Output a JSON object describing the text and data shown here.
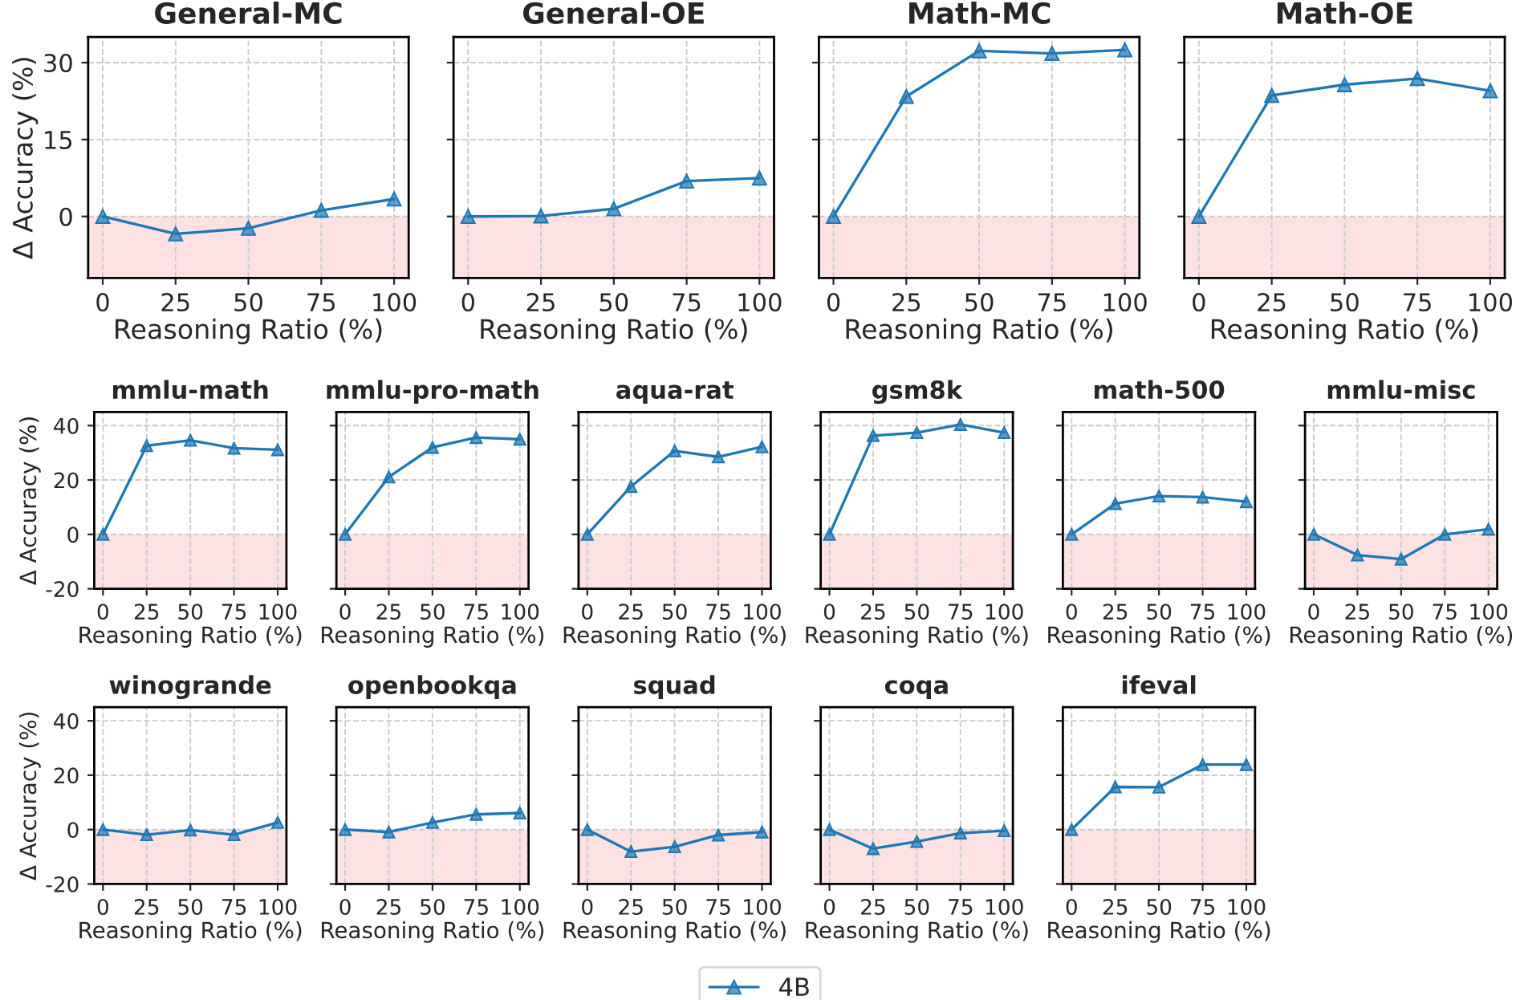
{
  "chart_data": [
    {
      "type": "line",
      "title": "General-MC",
      "xlabel": "Reasoning Ratio (%)",
      "ylabel": "Δ Accuracy (%)",
      "x": [
        0,
        25,
        50,
        75,
        100
      ],
      "xlim": [
        -5,
        105
      ],
      "xticks": [
        0,
        25,
        50,
        75,
        100
      ],
      "ylim": [
        -12,
        35
      ],
      "yticks": [
        0,
        15,
        30
      ],
      "grid": true,
      "marker": "triangle",
      "line_style": "solid",
      "legend": "bottom",
      "series": [
        {
          "name": "4B",
          "color": "#1f77b4",
          "values": [
            0,
            -3.4,
            -2.3,
            1.2,
            3.4
          ]
        }
      ],
      "bands": [
        {
          "axis": "y",
          "from": -12,
          "to": 0,
          "color": "#fde2e4"
        }
      ]
    },
    {
      "type": "line",
      "title": "General-OE",
      "xlabel": "Reasoning Ratio (%)",
      "x": [
        0,
        25,
        50,
        75,
        100
      ],
      "xlim": [
        -5,
        105
      ],
      "xticks": [
        0,
        25,
        50,
        75,
        100
      ],
      "ylim": [
        -12,
        35
      ],
      "yticks": [
        0,
        15,
        30
      ],
      "grid": true,
      "marker": "triangle",
      "line_style": "solid",
      "tick_labels": "x",
      "series": [
        {
          "color": "#1f77b4",
          "values": [
            0,
            0.1,
            1.5,
            6.9,
            7.5
          ]
        }
      ],
      "bands": [
        {
          "axis": "y",
          "from": -12,
          "to": 0,
          "color": "#fde2e4"
        }
      ]
    },
    {
      "type": "line",
      "title": "Math-MC",
      "xlabel": "Reasoning Ratio (%)",
      "x": [
        0,
        25,
        50,
        75,
        100
      ],
      "xlim": [
        -5,
        105
      ],
      "xticks": [
        0,
        25,
        50,
        75,
        100
      ],
      "ylim": [
        -12,
        35
      ],
      "yticks": [
        0,
        15,
        30
      ],
      "grid": true,
      "marker": "triangle",
      "line_style": "solid",
      "tick_labels": "x",
      "series": [
        {
          "color": "#1f77b4",
          "values": [
            0,
            23.4,
            32.3,
            31.8,
            32.5
          ]
        }
      ],
      "bands": [
        {
          "axis": "y",
          "from": -12,
          "to": 0,
          "color": "#fde2e4"
        }
      ]
    },
    {
      "type": "line",
      "title": "Math-OE",
      "xlabel": "Reasoning Ratio (%)",
      "x": [
        0,
        25,
        50,
        75,
        100
      ],
      "xlim": [
        -5,
        105
      ],
      "xticks": [
        0,
        25,
        50,
        75,
        100
      ],
      "ylim": [
        -12,
        35
      ],
      "yticks": [
        0,
        15,
        30
      ],
      "grid": true,
      "marker": "triangle",
      "line_style": "solid",
      "tick_labels": "x",
      "series": [
        {
          "color": "#1f77b4",
          "values": [
            0,
            23.6,
            25.7,
            26.9,
            24.5
          ]
        }
      ],
      "bands": [
        {
          "axis": "y",
          "from": -12,
          "to": 0,
          "color": "#fde2e4"
        }
      ]
    },
    {
      "type": "line",
      "title": "mmlu-math",
      "xlabel": "Reasoning Ratio (%)",
      "ylabel": "Δ Accuracy (%)",
      "x": [
        0,
        25,
        50,
        75,
        100
      ],
      "xlim": [
        -5,
        105
      ],
      "xticks": [
        0,
        25,
        50,
        75,
        100
      ],
      "ylim": [
        -20,
        45
      ],
      "yticks": [
        -20,
        0,
        20,
        40
      ],
      "grid": true,
      "marker": "triangle",
      "line_style": "solid",
      "series": [
        {
          "color": "#1f77b4",
          "values": [
            0,
            32.6,
            34.6,
            31.7,
            31.1
          ]
        }
      ],
      "bands": [
        {
          "axis": "y",
          "from": -20,
          "to": 0,
          "color": "#fde2e4"
        }
      ]
    },
    {
      "type": "line",
      "title": "mmlu-pro-math",
      "xlabel": "Reasoning Ratio (%)",
      "x": [
        0,
        25,
        50,
        75,
        100
      ],
      "xlim": [
        -5,
        105
      ],
      "xticks": [
        0,
        25,
        50,
        75,
        100
      ],
      "ylim": [
        -20,
        45
      ],
      "yticks": [
        -20,
        0,
        20,
        40
      ],
      "grid": true,
      "marker": "triangle",
      "line_style": "solid",
      "tick_labels": "x",
      "series": [
        {
          "color": "#1f77b4",
          "values": [
            0,
            21.1,
            32.0,
            35.6,
            35.0
          ]
        }
      ],
      "bands": [
        {
          "axis": "y",
          "from": -20,
          "to": 0,
          "color": "#fde2e4"
        }
      ]
    },
    {
      "type": "line",
      "title": "aqua-rat",
      "xlabel": "Reasoning Ratio (%)",
      "x": [
        0,
        25,
        50,
        75,
        100
      ],
      "xlim": [
        -5,
        105
      ],
      "xticks": [
        0,
        25,
        50,
        75,
        100
      ],
      "ylim": [
        -20,
        45
      ],
      "yticks": [
        -20,
        0,
        20,
        40
      ],
      "grid": true,
      "marker": "triangle",
      "line_style": "solid",
      "tick_labels": "x",
      "series": [
        {
          "color": "#1f77b4",
          "values": [
            0,
            17.6,
            30.7,
            28.5,
            32.2
          ]
        }
      ],
      "bands": [
        {
          "axis": "y",
          "from": -20,
          "to": 0,
          "color": "#fde2e4"
        }
      ]
    },
    {
      "type": "line",
      "title": "gsm8k",
      "xlabel": "Reasoning Ratio (%)",
      "x": [
        0,
        25,
        50,
        75,
        100
      ],
      "xlim": [
        -5,
        105
      ],
      "xticks": [
        0,
        25,
        50,
        75,
        100
      ],
      "ylim": [
        -20,
        45
      ],
      "yticks": [
        -20,
        0,
        20,
        40
      ],
      "grid": true,
      "marker": "triangle",
      "line_style": "solid",
      "tick_labels": "x",
      "series": [
        {
          "color": "#1f77b4",
          "values": [
            0,
            36.3,
            37.4,
            40.4,
            37.4
          ]
        }
      ],
      "bands": [
        {
          "axis": "y",
          "from": -20,
          "to": 0,
          "color": "#fde2e4"
        }
      ]
    },
    {
      "type": "line",
      "title": "math-500",
      "xlabel": "Reasoning Ratio (%)",
      "x": [
        0,
        25,
        50,
        75,
        100
      ],
      "xlim": [
        -5,
        105
      ],
      "xticks": [
        0,
        25,
        50,
        75,
        100
      ],
      "ylim": [
        -20,
        45
      ],
      "yticks": [
        -20,
        0,
        20,
        40
      ],
      "grid": true,
      "marker": "triangle",
      "line_style": "solid",
      "tick_labels": "x",
      "series": [
        {
          "color": "#1f77b4",
          "values": [
            0,
            11.3,
            14.1,
            13.7,
            12.0
          ]
        }
      ],
      "bands": [
        {
          "axis": "y",
          "from": -20,
          "to": 0,
          "color": "#fde2e4"
        }
      ]
    },
    {
      "type": "line",
      "title": "mmlu-misc",
      "xlabel": "Reasoning Ratio (%)",
      "x": [
        0,
        25,
        50,
        75,
        100
      ],
      "xlim": [
        -5,
        105
      ],
      "xticks": [
        0,
        25,
        50,
        75,
        100
      ],
      "ylim": [
        -20,
        45
      ],
      "yticks": [
        -20,
        0,
        20,
        40
      ],
      "grid": true,
      "marker": "triangle",
      "line_style": "solid",
      "tick_labels": "x",
      "series": [
        {
          "color": "#1f77b4",
          "values": [
            0,
            -7.6,
            -9.1,
            0,
            1.9
          ]
        }
      ],
      "bands": [
        {
          "axis": "y",
          "from": -20,
          "to": 0,
          "color": "#fde2e4"
        }
      ]
    },
    {
      "type": "line",
      "title": "winogrande",
      "xlabel": "Reasoning Ratio (%)",
      "ylabel": "Δ Accuracy (%)",
      "x": [
        0,
        25,
        50,
        75,
        100
      ],
      "xlim": [
        -5,
        105
      ],
      "xticks": [
        0,
        25,
        50,
        75,
        100
      ],
      "ylim": [
        -20,
        45
      ],
      "yticks": [
        -20,
        0,
        20,
        40
      ],
      "grid": true,
      "marker": "triangle",
      "line_style": "solid",
      "series": [
        {
          "color": "#1f77b4",
          "values": [
            0,
            -1.9,
            -0.2,
            -1.9,
            2.6
          ]
        }
      ],
      "bands": [
        {
          "axis": "y",
          "from": -20,
          "to": 0,
          "color": "#fde2e4"
        }
      ]
    },
    {
      "type": "line",
      "title": "openbookqa",
      "xlabel": "Reasoning Ratio (%)",
      "x": [
        0,
        25,
        50,
        75,
        100
      ],
      "xlim": [
        -5,
        105
      ],
      "xticks": [
        0,
        25,
        50,
        75,
        100
      ],
      "ylim": [
        -20,
        45
      ],
      "yticks": [
        -20,
        0,
        20,
        40
      ],
      "grid": true,
      "marker": "triangle",
      "line_style": "solid",
      "tick_labels": "x",
      "series": [
        {
          "color": "#1f77b4",
          "values": [
            0,
            -0.9,
            2.6,
            5.6,
            6.1
          ]
        }
      ],
      "bands": [
        {
          "axis": "y",
          "from": -20,
          "to": 0,
          "color": "#fde2e4"
        }
      ]
    },
    {
      "type": "line",
      "title": "squad",
      "xlabel": "Reasoning Ratio (%)",
      "x": [
        0,
        25,
        50,
        75,
        100
      ],
      "xlim": [
        -5,
        105
      ],
      "xticks": [
        0,
        25,
        50,
        75,
        100
      ],
      "ylim": [
        -20,
        45
      ],
      "yticks": [
        -20,
        0,
        20,
        40
      ],
      "grid": true,
      "marker": "triangle",
      "line_style": "solid",
      "tick_labels": "x",
      "series": [
        {
          "color": "#1f77b4",
          "values": [
            0,
            -8.1,
            -6.3,
            -2.0,
            -0.9
          ]
        }
      ],
      "bands": [
        {
          "axis": "y",
          "from": -20,
          "to": 0,
          "color": "#fde2e4"
        }
      ]
    },
    {
      "type": "line",
      "title": "coqa",
      "xlabel": "Reasoning Ratio (%)",
      "x": [
        0,
        25,
        50,
        75,
        100
      ],
      "xlim": [
        -5,
        105
      ],
      "xticks": [
        0,
        25,
        50,
        75,
        100
      ],
      "ylim": [
        -20,
        45
      ],
      "yticks": [
        -20,
        0,
        20,
        40
      ],
      "grid": true,
      "marker": "triangle",
      "line_style": "solid",
      "tick_labels": "x",
      "series": [
        {
          "color": "#1f77b4",
          "values": [
            0,
            -7.0,
            -4.4,
            -1.3,
            -0.4
          ]
        }
      ],
      "bands": [
        {
          "axis": "y",
          "from": -20,
          "to": 0,
          "color": "#fde2e4"
        }
      ]
    },
    {
      "type": "line",
      "title": "ifeval",
      "xlabel": "Reasoning Ratio (%)",
      "x": [
        0,
        25,
        50,
        75,
        100
      ],
      "xlim": [
        -5,
        105
      ],
      "xticks": [
        0,
        25,
        50,
        75,
        100
      ],
      "ylim": [
        -20,
        45
      ],
      "yticks": [
        -20,
        0,
        20,
        40
      ],
      "grid": true,
      "marker": "triangle",
      "line_style": "solid",
      "tick_labels": "x",
      "series": [
        {
          "color": "#1f77b4",
          "values": [
            0,
            15.7,
            15.6,
            23.9,
            23.9
          ]
        }
      ],
      "bands": [
        {
          "axis": "y",
          "from": -20,
          "to": 0,
          "color": "#fde2e4"
        }
      ]
    }
  ]
}
